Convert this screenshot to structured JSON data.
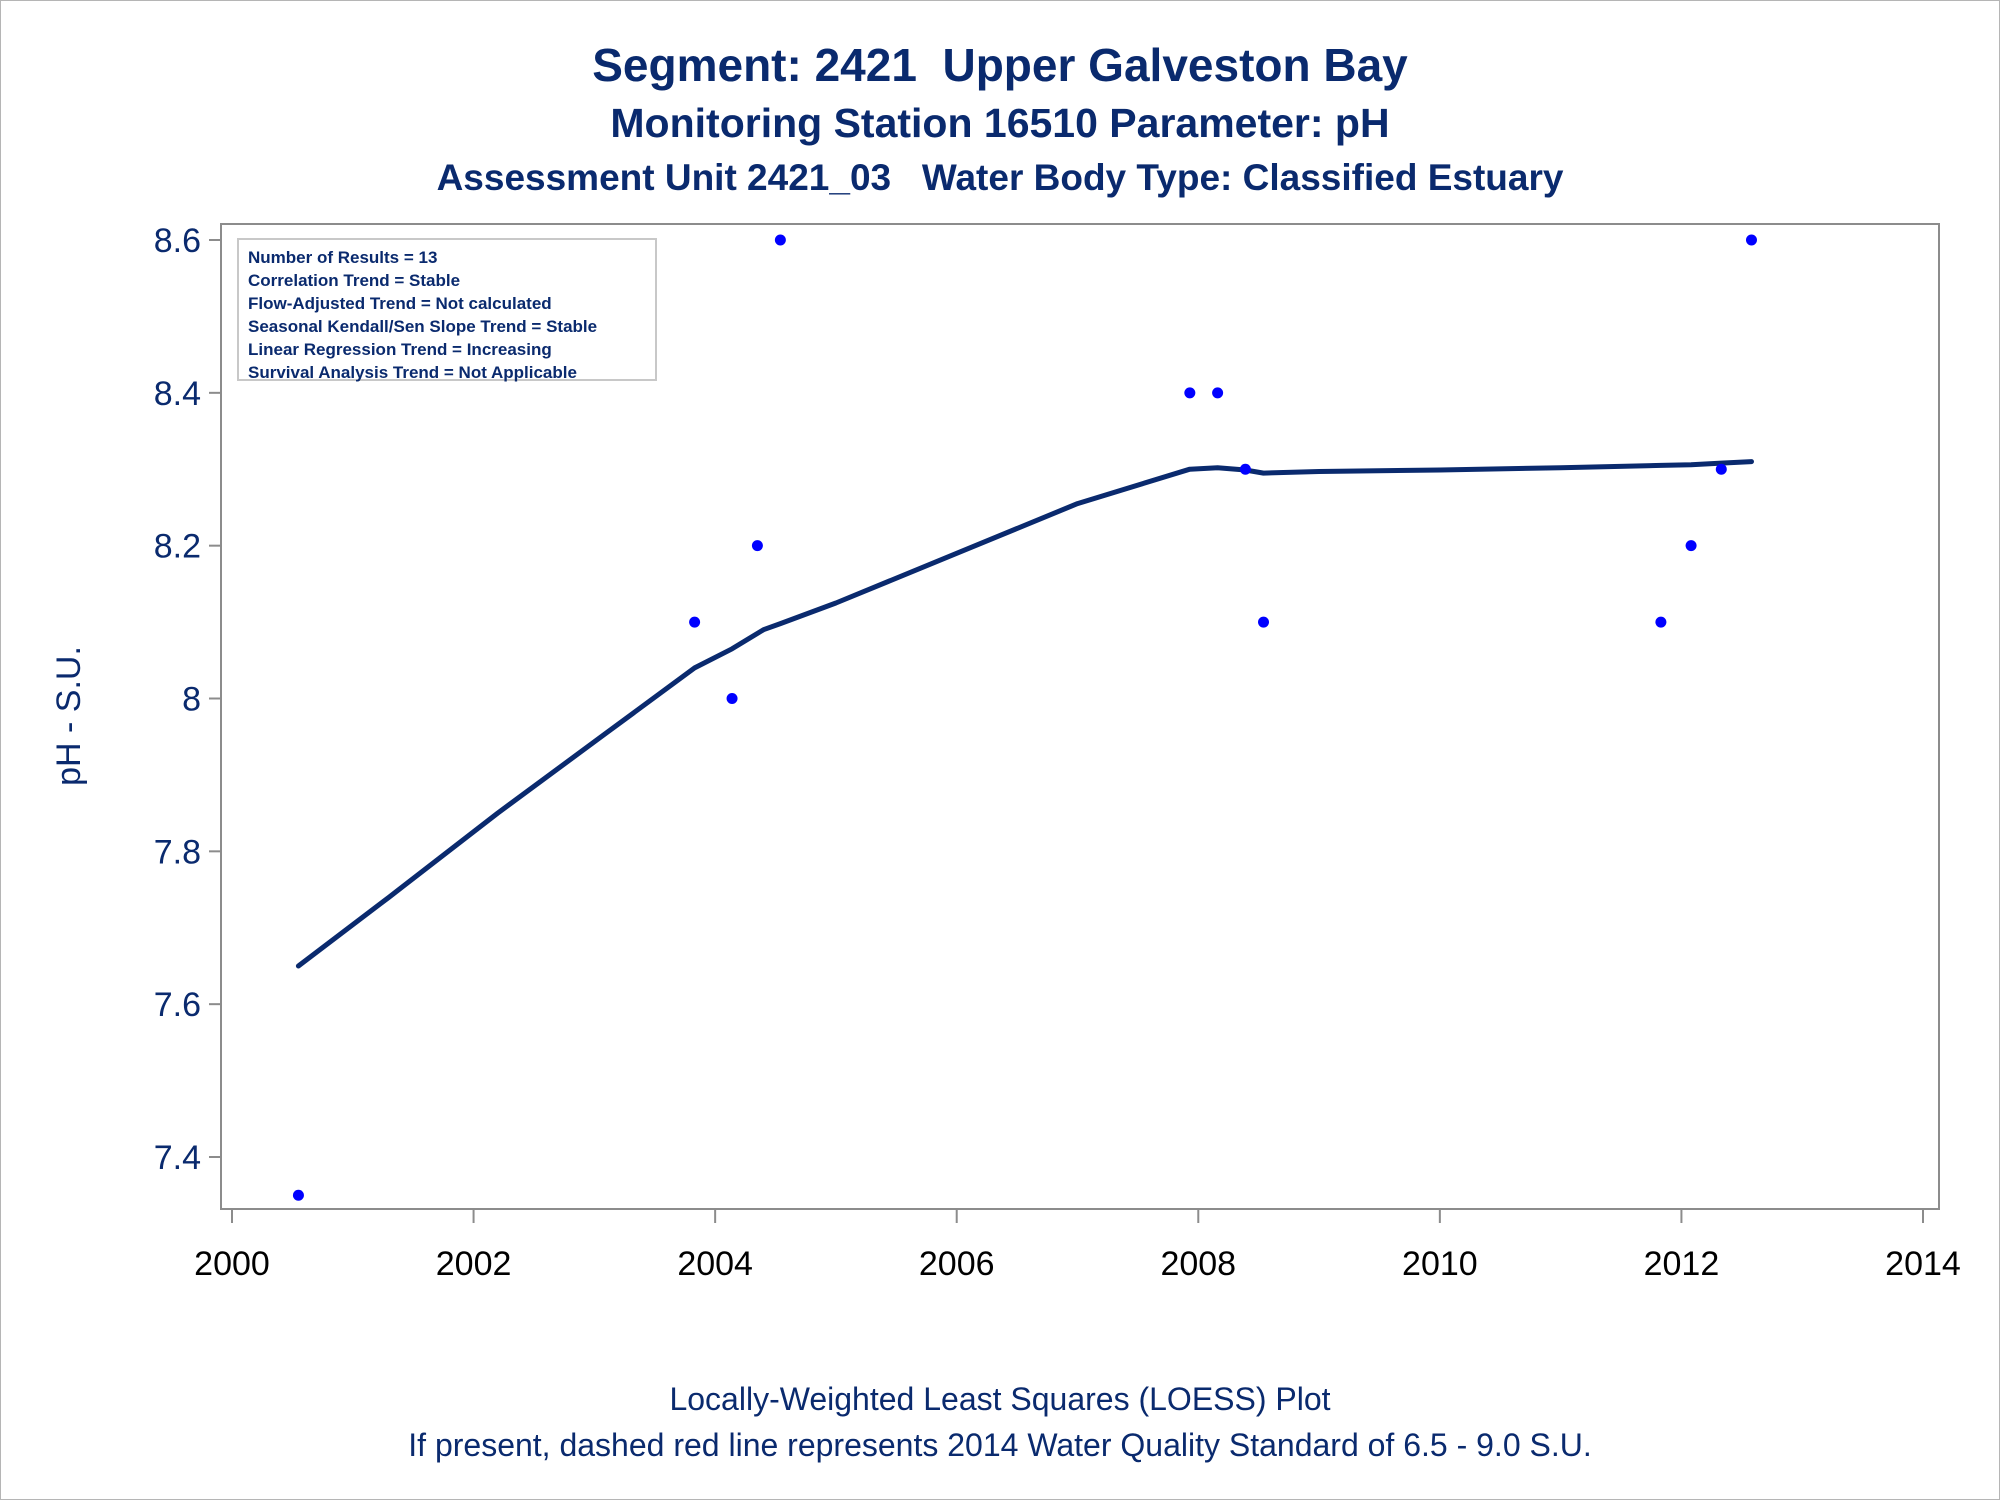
{
  "titles": {
    "line1": "Segment: 2421  Upper Galveston Bay",
    "line2": "Monitoring Station 16510 Parameter: pH",
    "line3": "Assessment Unit 2421_03   Water Body Type: Classified Estuary"
  },
  "footnotes": {
    "line1": "Locally-Weighted Least Squares (LOESS) Plot",
    "line2": "If present, dashed red line represents 2014 Water Quality Standard of 6.5 - 9.0 S.U."
  },
  "stats": [
    "Number of Results = 13",
    "Correlation Trend = Stable",
    "Flow-Adjusted Trend = Not calculated",
    "Seasonal Kendall/Sen Slope Trend = Stable",
    "Linear Regression Trend = Increasing",
    "Survival Analysis Trend = Not Applicable"
  ],
  "colors": {
    "text": "#0a2a6e",
    "points": "#0000ff",
    "loess_line": "#0a2a6e",
    "axis": "#8c8c8c"
  },
  "chart_data": {
    "type": "scatter",
    "title": "Segment: 2421  Upper Galveston Bay",
    "xlabel": "",
    "ylabel": "pH - S.U.",
    "xlim": [
      2000,
      2014
    ],
    "ylim": [
      7.33,
      8.63
    ],
    "xticks": [
      "2000",
      "2002",
      "2004",
      "2006",
      "2008",
      "2010",
      "2012",
      "2014"
    ],
    "yticks": [
      "7.4",
      "7.6",
      "7.8",
      "8",
      "8.2",
      "8.4",
      "8.6"
    ],
    "grid": false,
    "legend": "none",
    "points": [
      {
        "x": 2000.55,
        "y": 7.35
      },
      {
        "x": 2003.83,
        "y": 8.1
      },
      {
        "x": 2004.14,
        "y": 8.0
      },
      {
        "x": 2004.35,
        "y": 8.2
      },
      {
        "x": 2004.54,
        "y": 8.6
      },
      {
        "x": 2007.93,
        "y": 8.4
      },
      {
        "x": 2008.16,
        "y": 8.4
      },
      {
        "x": 2008.39,
        "y": 8.3
      },
      {
        "x": 2008.54,
        "y": 8.1
      },
      {
        "x": 2011.83,
        "y": 8.1
      },
      {
        "x": 2012.08,
        "y": 8.2
      },
      {
        "x": 2012.33,
        "y": 8.3
      },
      {
        "x": 2012.58,
        "y": 8.6
      }
    ],
    "loess": [
      {
        "x": 2000.55,
        "y": 7.65
      },
      {
        "x": 2001.3,
        "y": 7.74
      },
      {
        "x": 2002.2,
        "y": 7.85
      },
      {
        "x": 2003.1,
        "y": 7.955
      },
      {
        "x": 2003.83,
        "y": 8.04
      },
      {
        "x": 2004.14,
        "y": 8.065
      },
      {
        "x": 2004.4,
        "y": 8.09
      },
      {
        "x": 2004.54,
        "y": 8.098
      },
      {
        "x": 2005.0,
        "y": 8.125
      },
      {
        "x": 2006.0,
        "y": 8.19
      },
      {
        "x": 2007.0,
        "y": 8.255
      },
      {
        "x": 2007.93,
        "y": 8.3
      },
      {
        "x": 2008.16,
        "y": 8.302
      },
      {
        "x": 2008.39,
        "y": 8.299
      },
      {
        "x": 2008.54,
        "y": 8.295
      },
      {
        "x": 2009.0,
        "y": 8.297
      },
      {
        "x": 2010.0,
        "y": 8.299
      },
      {
        "x": 2011.0,
        "y": 8.302
      },
      {
        "x": 2011.83,
        "y": 8.305
      },
      {
        "x": 2012.08,
        "y": 8.306
      },
      {
        "x": 2012.33,
        "y": 8.308
      },
      {
        "x": 2012.58,
        "y": 8.31
      }
    ]
  }
}
